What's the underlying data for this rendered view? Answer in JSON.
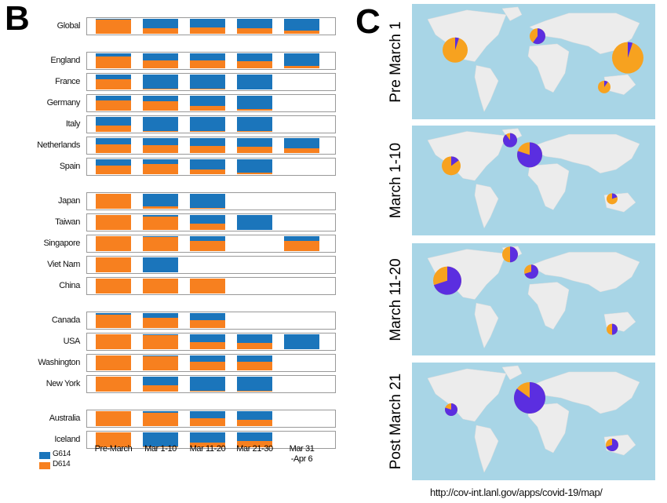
{
  "chart_data": {
    "type": "bar",
    "stacked": true,
    "panel_label": "B",
    "categories": [
      "Pre-March",
      "Mar 1-10",
      "Mar 11-20",
      "Mar 21-30",
      "Mar 31\n-Apr 6"
    ],
    "groups": [
      [
        "Global"
      ],
      [
        "England",
        "France",
        "Germany",
        "Italy",
        "Netherlands",
        "Spain"
      ],
      [
        "Japan",
        "Taiwan",
        "Singapore",
        "Viet Nam",
        "China"
      ],
      [
        "Canada",
        "USA",
        "Washington",
        "New York"
      ],
      [
        "Australia",
        "Iceland"
      ]
    ],
    "series": [
      {
        "name": "G614",
        "color": "#1b75bb",
        "values": [
          [
            [
              2,
              65,
              60,
              65,
              80
            ]
          ],
          [
            [
              20,
              45,
              45,
              55,
              85
            ],
            [
              30,
              95,
              95,
              100,
              null
            ],
            [
              30,
              35,
              70,
              90,
              null
            ],
            [
              60,
              95,
              95,
              95,
              null
            ],
            [
              40,
              45,
              55,
              60,
              70
            ],
            [
              40,
              30,
              70,
              90,
              null
            ]
          ],
          [
            [
              0,
              85,
              95,
              null,
              null
            ],
            [
              0,
              10,
              60,
              100,
              null
            ],
            [
              0,
              5,
              30,
              null,
              30
            ],
            [
              0,
              100,
              null,
              null,
              null
            ],
            [
              0,
              0,
              0,
              null,
              null
            ]
          ],
          [
            [
              10,
              30,
              45,
              null,
              null
            ],
            [
              0,
              5,
              50,
              60,
              100
            ],
            [
              0,
              5,
              40,
              40,
              null
            ],
            [
              0,
              60,
              95,
              95,
              null
            ]
          ],
          [
            [
              0,
              10,
              45,
              60,
              null
            ],
            [
              0,
              95,
              70,
              60,
              null
            ]
          ]
        ]
      },
      {
        "name": "D614",
        "color": "#f7801f",
        "values": [
          [
            [
              98,
              35,
              40,
              35,
              20
            ]
          ],
          [
            [
              80,
              55,
              55,
              45,
              15
            ],
            [
              70,
              5,
              5,
              0,
              null
            ],
            [
              70,
              65,
              30,
              10,
              null
            ],
            [
              40,
              5,
              5,
              5,
              null
            ],
            [
              60,
              55,
              45,
              40,
              30
            ],
            [
              60,
              70,
              30,
              10,
              null
            ]
          ],
          [
            [
              100,
              15,
              5,
              null,
              null
            ],
            [
              100,
              90,
              40,
              0,
              null
            ],
            [
              100,
              95,
              70,
              null,
              70
            ],
            [
              100,
              0,
              null,
              null,
              null
            ],
            [
              100,
              100,
              100,
              null,
              null
            ]
          ],
          [
            [
              90,
              70,
              55,
              null,
              null
            ],
            [
              100,
              95,
              50,
              40,
              0
            ],
            [
              100,
              95,
              60,
              60,
              null
            ],
            [
              100,
              40,
              5,
              5,
              null
            ]
          ],
          [
            [
              100,
              90,
              55,
              40,
              null
            ],
            [
              100,
              5,
              30,
              40,
              null
            ]
          ]
        ]
      }
    ]
  },
  "panel_c": {
    "label": "C",
    "maps": [
      "Pre March 1",
      "March 1-10",
      "March 11-20",
      "Post March 21"
    ],
    "url": "http://cov-int.lanl.gov/apps/covid-19/map/"
  }
}
